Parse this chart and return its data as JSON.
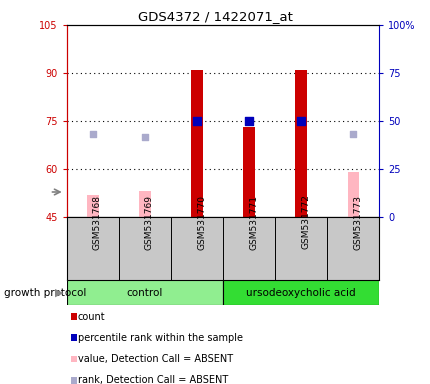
{
  "title": "GDS4372 / 1422071_at",
  "samples": [
    "GSM531768",
    "GSM531769",
    "GSM531770",
    "GSM531771",
    "GSM531772",
    "GSM531773"
  ],
  "groups": [
    {
      "name": "control",
      "color": "#90EE90",
      "samples": [
        0,
        1,
        2
      ]
    },
    {
      "name": "ursodeoxycholic acid",
      "color": "#33DD33",
      "samples": [
        3,
        4,
        5
      ]
    }
  ],
  "ylim_left": [
    45,
    105
  ],
  "ylim_right": [
    0,
    100
  ],
  "yticks_left": [
    45,
    60,
    75,
    90,
    105
  ],
  "yticks_right": [
    0,
    25,
    50,
    75,
    100
  ],
  "ytick_labels_left": [
    "45",
    "60",
    "75",
    "90",
    "105"
  ],
  "ytick_labels_right": [
    "0",
    "25",
    "50",
    "75",
    "100%"
  ],
  "left_axis_color": "#CC0000",
  "right_axis_color": "#0000BB",
  "count_bars": {
    "values": [
      null,
      null,
      91,
      73,
      91,
      null
    ],
    "color": "#CC0000"
  },
  "value_absent_bars": {
    "values": [
      52,
      53,
      null,
      null,
      null,
      59
    ],
    "color": "#FFB6C1"
  },
  "percentile_rank_dots": {
    "values": [
      null,
      null,
      75,
      75,
      75,
      null
    ],
    "color": "#0000BB",
    "size": 35
  },
  "rank_absent_dots": {
    "values": [
      71,
      70,
      null,
      null,
      null,
      71
    ],
    "color": "#AAAACC",
    "size": 25
  },
  "grid_color": "black",
  "plot_bg_color": "white",
  "sample_bg_color": "#C8C8C8",
  "group_protocol_label": "growth protocol",
  "bar_width": 0.22,
  "legend_items": [
    {
      "label": "count",
      "color": "#CC0000"
    },
    {
      "label": "percentile rank within the sample",
      "color": "#0000BB"
    },
    {
      "label": "value, Detection Call = ABSENT",
      "color": "#FFB6C1"
    },
    {
      "label": "rank, Detection Call = ABSENT",
      "color": "#AAAACC"
    }
  ]
}
